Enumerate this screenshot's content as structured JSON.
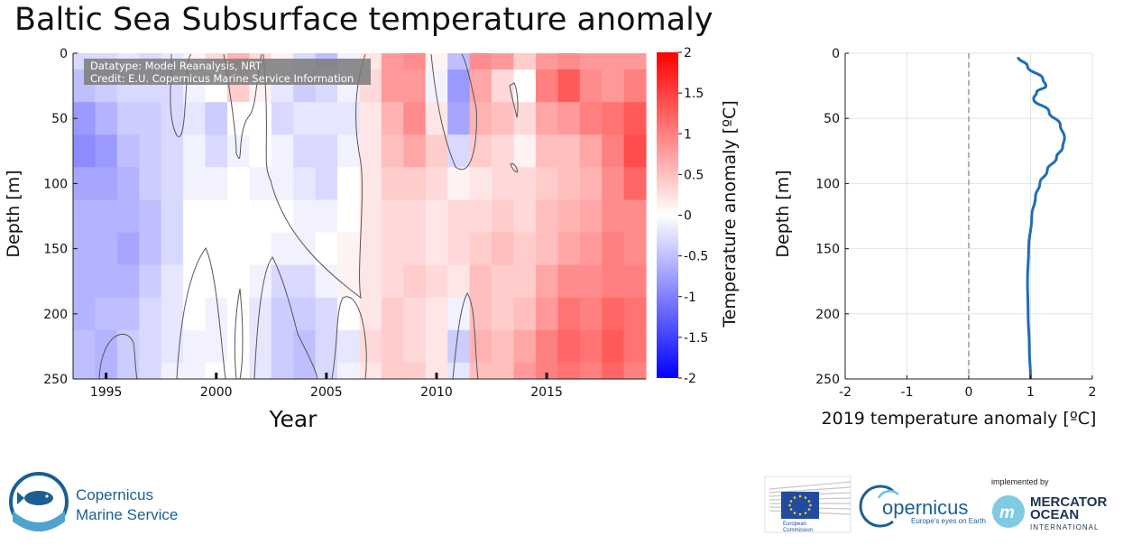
{
  "title": "Baltic Sea Subsurface temperature anomaly",
  "chart_data": [
    {
      "type": "heatmap",
      "title": "Baltic Sea Subsurface temperature anomaly",
      "xlabel": "Year",
      "ylabel": "Depth [m]",
      "xlim": [
        1993.5,
        2019.5
      ],
      "ylim": [
        250,
        0
      ],
      "xticks": [
        "1995",
        "2000",
        "2005",
        "2010",
        "2015"
      ],
      "yticks": [
        "0",
        "50",
        "100",
        "150",
        "200",
        "250"
      ],
      "depths": [
        0,
        25,
        50,
        75,
        100,
        125,
        150,
        175,
        200,
        225,
        250
      ],
      "years": [
        1994,
        1995,
        1996,
        1997,
        1998,
        1999,
        2000,
        2001,
        2002,
        2003,
        2004,
        2005,
        2006,
        2007,
        2008,
        2009,
        2010,
        2011,
        2012,
        2013,
        2014,
        2015,
        2016,
        2017,
        2018,
        2019
      ],
      "values": [
        [
          -0.3,
          -0.5,
          -0.8,
          -0.9,
          -0.7,
          -0.6,
          -0.6,
          -0.6,
          -0.6,
          -0.5,
          -0.5
        ],
        [
          -0.3,
          -0.4,
          -0.6,
          -0.8,
          -0.7,
          -0.6,
          -0.6,
          -0.6,
          -0.5,
          -0.6,
          -0.6
        ],
        [
          -0.2,
          -0.3,
          -0.4,
          -0.5,
          -0.6,
          -0.6,
          -0.7,
          -0.6,
          -0.5,
          -0.4,
          -0.4
        ],
        [
          -0.3,
          -0.3,
          -0.4,
          -0.4,
          -0.4,
          -0.5,
          -0.5,
          -0.4,
          -0.3,
          -0.3,
          -0.3
        ],
        [
          -0.2,
          -0.3,
          -0.3,
          -0.3,
          -0.3,
          -0.3,
          -0.3,
          -0.2,
          -0.2,
          -0.2,
          -0.1
        ],
        [
          0.1,
          -0.1,
          -0.2,
          -0.1,
          -0.1,
          0.0,
          0.0,
          0.0,
          0.0,
          -0.1,
          -0.1
        ],
        [
          0.3,
          0.0,
          -0.4,
          -0.3,
          -0.1,
          0.0,
          0.0,
          0.0,
          -0.1,
          -0.1,
          0.0
        ],
        [
          0.6,
          0.4,
          0.0,
          -0.1,
          0.0,
          0.0,
          0.0,
          0.0,
          0.0,
          0.0,
          0.0
        ],
        [
          0.3,
          0.1,
          0.0,
          0.0,
          -0.1,
          0.0,
          0.0,
          -0.1,
          -0.2,
          -0.2,
          -0.2
        ],
        [
          0.1,
          -0.2,
          -0.3,
          -0.1,
          -0.1,
          0.0,
          -0.1,
          -0.3,
          -0.4,
          -0.4,
          -0.4
        ],
        [
          -0.3,
          -0.4,
          -0.2,
          -0.3,
          -0.2,
          -0.1,
          -0.1,
          -0.3,
          -0.4,
          -0.5,
          -0.5
        ],
        [
          -0.5,
          -0.3,
          -0.2,
          -0.3,
          -0.3,
          -0.1,
          0.0,
          -0.1,
          -0.3,
          -0.3,
          -0.3
        ],
        [
          -0.1,
          -0.1,
          -0.2,
          -0.1,
          0.0,
          0.0,
          0.1,
          0.1,
          0.0,
          -0.2,
          -0.1
        ],
        [
          0.2,
          0.3,
          0.2,
          0.2,
          0.2,
          0.2,
          0.2,
          0.2,
          0.2,
          0.3,
          0.2
        ],
        [
          0.8,
          0.8,
          0.6,
          0.5,
          0.4,
          0.3,
          0.3,
          0.3,
          0.4,
          0.4,
          0.4
        ],
        [
          0.9,
          0.8,
          0.9,
          0.7,
          0.4,
          0.3,
          0.3,
          0.4,
          0.3,
          0.3,
          0.4
        ],
        [
          0.1,
          -0.1,
          0.2,
          0.4,
          0.3,
          0.2,
          0.2,
          0.3,
          0.2,
          0.2,
          0.2
        ],
        [
          -0.5,
          -0.8,
          -0.7,
          -0.3,
          0.1,
          0.3,
          0.3,
          0.2,
          -0.1,
          -0.4,
          -0.2
        ],
        [
          0.9,
          0.7,
          0.6,
          0.4,
          0.2,
          0.3,
          0.4,
          0.5,
          0.5,
          0.6,
          0.5
        ],
        [
          0.8,
          0.3,
          0.5,
          0.3,
          0.3,
          0.4,
          0.5,
          0.4,
          0.4,
          0.5,
          0.5
        ],
        [
          0.4,
          0.0,
          0.3,
          0.1,
          0.3,
          0.3,
          0.4,
          0.4,
          0.5,
          0.7,
          0.8
        ],
        [
          0.8,
          1.0,
          0.7,
          0.5,
          0.4,
          0.5,
          0.5,
          0.7,
          0.8,
          1.0,
          1.0
        ],
        [
          0.9,
          1.3,
          0.8,
          0.5,
          0.5,
          0.6,
          0.7,
          0.9,
          1.1,
          1.2,
          1.1
        ],
        [
          0.8,
          0.9,
          1.0,
          0.7,
          0.6,
          0.7,
          0.8,
          0.9,
          1.0,
          1.1,
          1.0
        ],
        [
          0.8,
          0.8,
          1.1,
          1.0,
          0.9,
          0.9,
          1.0,
          1.0,
          1.2,
          1.3,
          1.2
        ],
        [
          0.8,
          1.0,
          1.3,
          1.4,
          1.2,
          0.9,
          0.9,
          1.0,
          1.1,
          1.1,
          1.0
        ]
      ],
      "colorbar": {
        "label": "Temperature anomaly [ºC]",
        "ticks": [
          "2",
          "1.5",
          "1",
          "0.5",
          "0",
          "-0.5",
          "-1",
          "-1.5",
          "-2"
        ],
        "range": [
          -2,
          2
        ],
        "low_color": "#0000ff",
        "mid_color": "#ffffff",
        "high_color": "#ff0000"
      },
      "annotation": {
        "line1": "Datatype: Model Reanalysis, NRT",
        "line2": "Credit: E.U. Copernicus Marine Service Information"
      }
    },
    {
      "type": "line",
      "xlabel": "2019 temperature anomaly [ºC]",
      "ylabel": "Depth [m]",
      "xlim": [
        -2,
        2
      ],
      "ylim": [
        250,
        0
      ],
      "xticks": [
        "-2",
        "-1",
        "0",
        "1",
        "2"
      ],
      "yticks": [
        "0",
        "50",
        "100",
        "150",
        "200",
        "250"
      ],
      "grid": true,
      "series": [
        {
          "name": "2019",
          "color": "#1f6db5",
          "depth": [
            3,
            10,
            20,
            25,
            30,
            35,
            45,
            55,
            65,
            72,
            80,
            90,
            100,
            110,
            125,
            150,
            175,
            200,
            225,
            250
          ],
          "values": [
            0.8,
            0.95,
            1.2,
            1.25,
            1.1,
            1.05,
            1.3,
            1.48,
            1.55,
            1.52,
            1.42,
            1.27,
            1.15,
            1.08,
            1.02,
            0.97,
            0.95,
            0.96,
            0.98,
            1.0
          ]
        }
      ],
      "reference_line": {
        "x": 0,
        "style": "dashed"
      }
    }
  ],
  "logos": {
    "cms_line1": "Copernicus",
    "cms_line2": "Marine Service",
    "ec_line1": "European",
    "ec_line2": "Commission",
    "copernicus_word": "opernicus",
    "copernicus_tagline": "Europe's eyes on Earth",
    "implemented_by": "implemented by",
    "mercator_line1": "MERCATOR",
    "mercator_line2": "OCEAN",
    "mercator_line3": "INTERNATIONAL"
  }
}
